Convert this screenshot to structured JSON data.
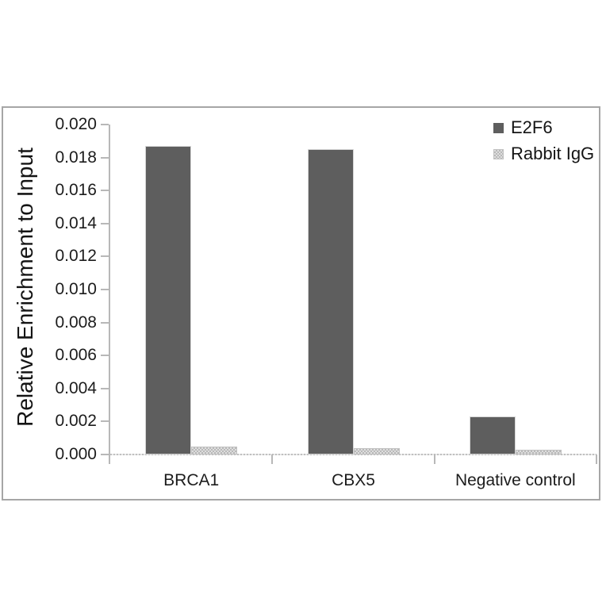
{
  "chart_data": {
    "type": "bar",
    "title": "",
    "ylabel": "Relative Enrichment to Input",
    "xlabel": "",
    "categories": [
      "BRCA1",
      "CBX5",
      "Negative control"
    ],
    "series": [
      {
        "name": "E2F6",
        "fill": "solid",
        "color": "#5e5e5e",
        "values": [
          0.0187,
          0.0185,
          0.0023
        ]
      },
      {
        "name": "Rabbit IgG",
        "fill": "dotted-pattern",
        "color": "#cccccc",
        "values": [
          0.0005,
          0.0004,
          0.0003
        ]
      }
    ],
    "ylim": [
      0,
      0.02
    ],
    "ytick_step": 0.002,
    "ytick_labels": [
      "0.000",
      "0.002",
      "0.004",
      "0.006",
      "0.008",
      "0.010",
      "0.012",
      "0.014",
      "0.016",
      "0.018",
      "0.020"
    ],
    "legend_position": "top-right",
    "grid": false,
    "colors": {
      "axis": "#b8b8b8",
      "frame_border": "#a6a6a6",
      "text": "#1c1c1c",
      "background": "#ffffff"
    }
  }
}
